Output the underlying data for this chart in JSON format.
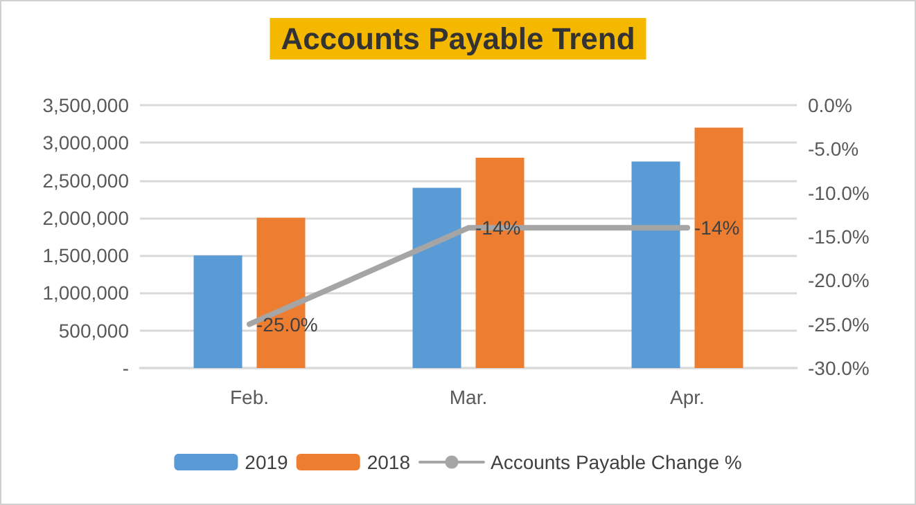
{
  "chart_data": {
    "type": "bar",
    "title": "Accounts Payable Trend",
    "categories": [
      "Feb.",
      "Mar.",
      "Apr."
    ],
    "series": [
      {
        "name": "2019",
        "color": "#5b9bd5",
        "values": [
          1500000,
          2400000,
          2750000
        ]
      },
      {
        "name": "2018",
        "color": "#ed7d31",
        "values": [
          2000000,
          2800000,
          3200000
        ]
      },
      {
        "name": "Accounts Payable Change %",
        "type": "line",
        "axis": "y2",
        "color": "#a5a5a5",
        "values": [
          -25,
          -14,
          -14
        ],
        "value_labels": [
          "-25.0%",
          "-14%",
          "-14%"
        ]
      }
    ],
    "ylim": [
      0,
      3500000
    ],
    "yticks": [
      {
        "value": 0,
        "label": "-"
      },
      {
        "value": 500000,
        "label": "500,000"
      },
      {
        "value": 1000000,
        "label": "1,000,000"
      },
      {
        "value": 1500000,
        "label": "1,500,000"
      },
      {
        "value": 2000000,
        "label": "2,000,000"
      },
      {
        "value": 2500000,
        "label": "2,500,000"
      },
      {
        "value": 3000000,
        "label": "3,000,000"
      },
      {
        "value": 3500000,
        "label": "3,500,000"
      }
    ],
    "y2lim": [
      -30,
      0
    ],
    "y2ticks": [
      {
        "value": -30,
        "label": "-30.0%"
      },
      {
        "value": -25,
        "label": "-25.0%"
      },
      {
        "value": -20,
        "label": "-20.0%"
      },
      {
        "value": -15,
        "label": "-15.0%"
      },
      {
        "value": -10,
        "label": "-10.0%"
      },
      {
        "value": -5,
        "label": "-5.0%"
      },
      {
        "value": 0,
        "label": "0.0%"
      }
    ],
    "grid": "y",
    "legend": "bottom",
    "marker": "none",
    "line_style": "solid"
  }
}
